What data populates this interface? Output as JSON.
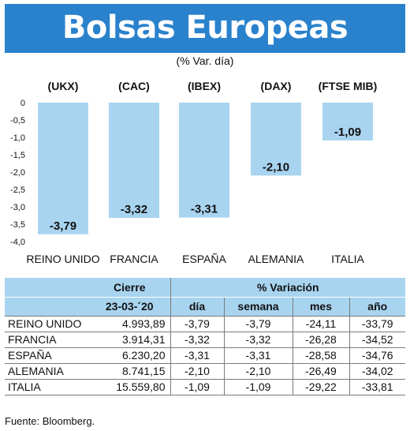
{
  "header": {
    "title": "Bolsas Europeas",
    "subtitle": "(% Var. día)"
  },
  "chart_data": {
    "type": "bar",
    "categories": [
      "REINO UNIDO",
      "FRANCIA",
      "ESPAÑA",
      "ALEMANIA",
      "ITALIA"
    ],
    "index_labels": [
      "(UKX)",
      "(CAC)",
      "(IBEX)",
      "(DAX)",
      "(FTSE MIB)"
    ],
    "values": [
      -3.79,
      -3.32,
      -3.31,
      -2.1,
      -1.09
    ],
    "value_labels": [
      "-3,79",
      "-3,32",
      "-3,31",
      "-2,10",
      "-1,09"
    ],
    "yticks": [
      "0",
      "-0,5",
      "-1,0",
      "-1,5",
      "-2,0",
      "-2,5",
      "-3,0",
      "-3,5",
      "-4,0"
    ],
    "ylim": [
      -4.0,
      0
    ],
    "bar_color": "#a8d4f0",
    "grid": false
  },
  "table": {
    "headers": {
      "cierre": "Cierre",
      "date": "23-03-´20",
      "variacion": "% Variación",
      "dia": "día",
      "semana": "semana",
      "mes": "mes",
      "anio": "año"
    },
    "rows": [
      {
        "name": "REINO UNIDO",
        "cierre": "4.993,89",
        "dia": "-3,79",
        "semana": "-3,79",
        "mes": "-24,11",
        "anio": "-33,79"
      },
      {
        "name": "FRANCIA",
        "cierre": "3.914,31",
        "dia": "-3,32",
        "semana": "-3,32",
        "mes": "-26,28",
        "anio": "-34,52"
      },
      {
        "name": "ESPAÑA",
        "cierre": "6.230,20",
        "dia": "-3,31",
        "semana": "-3,31",
        "mes": "-28,58",
        "anio": "-34,76"
      },
      {
        "name": "ALEMANIA",
        "cierre": "8.741,15",
        "dia": "-2,10",
        "semana": "-2,10",
        "mes": "-26,49",
        "anio": "-34,02"
      },
      {
        "name": "ITALIA",
        "cierre": "15.559,80",
        "dia": "-1,09",
        "semana": "-1,09",
        "mes": "-29,22",
        "anio": "-33,81"
      }
    ]
  },
  "footer": {
    "source": "Fuente: Bloomberg."
  },
  "colors": {
    "banner": "#2a82cc",
    "bars": "#a8d4f0",
    "table_header": "#a8d4f0"
  }
}
